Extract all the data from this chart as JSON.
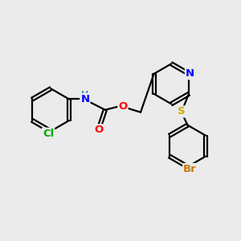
{
  "bg_color": "#ebebeb",
  "bond_color": "#000000",
  "bond_width": 1.6,
  "atom_colors": {
    "N": "#0000ff",
    "O": "#ff0000",
    "S": "#ccaa00",
    "Cl": "#00aa00",
    "Br": "#cc7700",
    "H": "#4488aa",
    "C": "#000000"
  },
  "font_size": 9.5,
  "figsize": [
    3.0,
    3.0
  ],
  "dpi": 100
}
